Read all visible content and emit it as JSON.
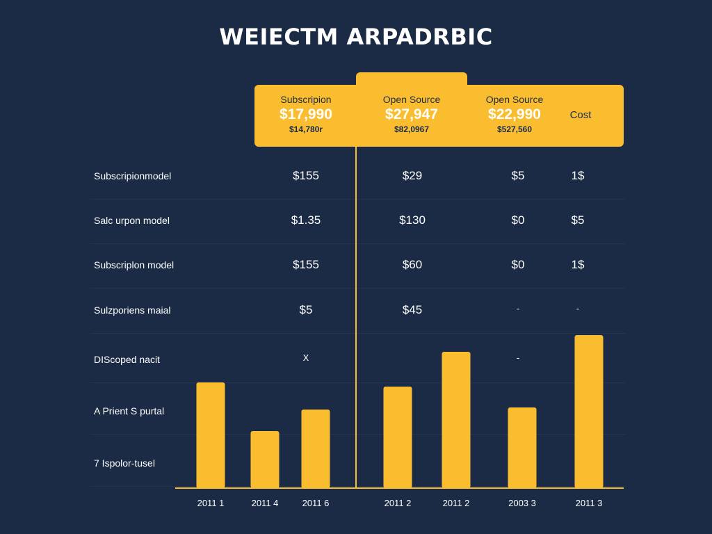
{
  "title": "WEIECTM ARPADRBIC",
  "banner": {
    "plans": [
      {
        "name": "Subscripion",
        "price": "$17,990",
        "sub": "$14,780r"
      },
      {
        "name": "Open Source",
        "price": "$27,947",
        "sub": "$82,0967"
      },
      {
        "name": "Open Source",
        "price": "$22,990",
        "sub": "$527,560"
      }
    ],
    "cost_label": "Cost"
  },
  "table": {
    "rows": [
      {
        "label": "Subscripionmodel",
        "cells": [
          "$155",
          "$29",
          "$5",
          "1$"
        ]
      },
      {
        "label": "Salc urpon model",
        "cells": [
          "$1.35",
          "$130",
          "$0",
          "$5"
        ]
      },
      {
        "label": "Subscriplon model",
        "cells": [
          "$155",
          "$60",
          "$0",
          "1$"
        ]
      },
      {
        "label": "Sulzporiens maial",
        "cells": [
          "$5",
          "$45",
          "-",
          "-"
        ]
      },
      {
        "label": "DIScoped nacit",
        "cells": [
          "X",
          "",
          "-",
          ""
        ]
      },
      {
        "label": "A Prient S purtal",
        "cells": [
          "",
          "",
          "",
          ""
        ]
      },
      {
        "label": "7 Ispolor-tusel",
        "cells": [
          "",
          "",
          "",
          ""
        ]
      }
    ]
  },
  "colors": {
    "background": "#1c2b45",
    "accent": "#fbbd30",
    "text": "#ffffff"
  },
  "chart_data": {
    "type": "bar",
    "categories": [
      "2011 1",
      "2011 4",
      "2011 6",
      "2011 2",
      "2011 2",
      "2003 3",
      "2011 3"
    ],
    "values": [
      152,
      82,
      113,
      146,
      196,
      116,
      220
    ],
    "ylim": [
      0,
      230
    ],
    "grid": false,
    "legend": "none"
  }
}
